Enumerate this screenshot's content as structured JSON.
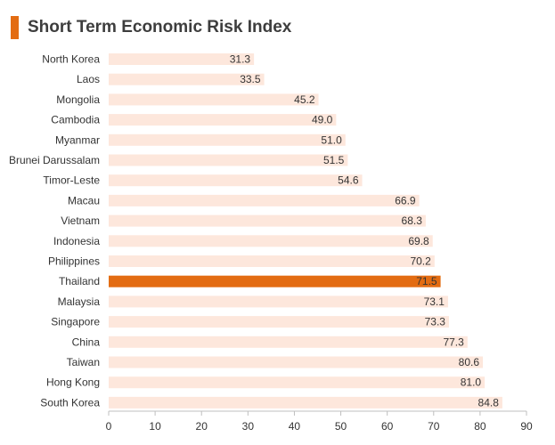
{
  "title": "Short Term Economic Risk Index",
  "colors": {
    "accent": "#e36c12",
    "bar": "#fde7dc",
    "highlight_bar": "#e36c12",
    "axis": "#bfbfbf"
  },
  "chart_data": {
    "type": "bar",
    "orientation": "horizontal",
    "title": "Short Term Economic Risk Index",
    "xlabel": "",
    "ylabel": "",
    "categories": [
      "North Korea",
      "Laos",
      "Mongolia",
      "Cambodia",
      "Myanmar",
      "Brunei Darussalam",
      "Timor-Leste",
      "Macau",
      "Vietnam",
      "Indonesia",
      "Philippines",
      "Thailand",
      "Malaysia",
      "Singapore",
      "China",
      "Taiwan",
      "Hong Kong",
      "South Korea"
    ],
    "values": [
      31.3,
      33.5,
      45.2,
      49.0,
      51.0,
      51.5,
      54.6,
      66.9,
      68.3,
      69.8,
      70.2,
      71.5,
      73.1,
      73.3,
      77.3,
      80.6,
      81.0,
      84.8
    ],
    "value_labels": [
      "31.3",
      "33.5",
      "45.2",
      "49.0",
      "51.0",
      "51.5",
      "54.6",
      "66.9",
      "68.3",
      "69.8",
      "70.2",
      "71.5",
      "73.1",
      "73.3",
      "77.3",
      "80.6",
      "81.0",
      "84.8"
    ],
    "highlight": "Thailand",
    "xlim": [
      0,
      90
    ],
    "xticks": [
      "0",
      "10",
      "20",
      "30",
      "40",
      "50",
      "60",
      "70",
      "80",
      "90"
    ],
    "grid": false,
    "legend": "none"
  }
}
